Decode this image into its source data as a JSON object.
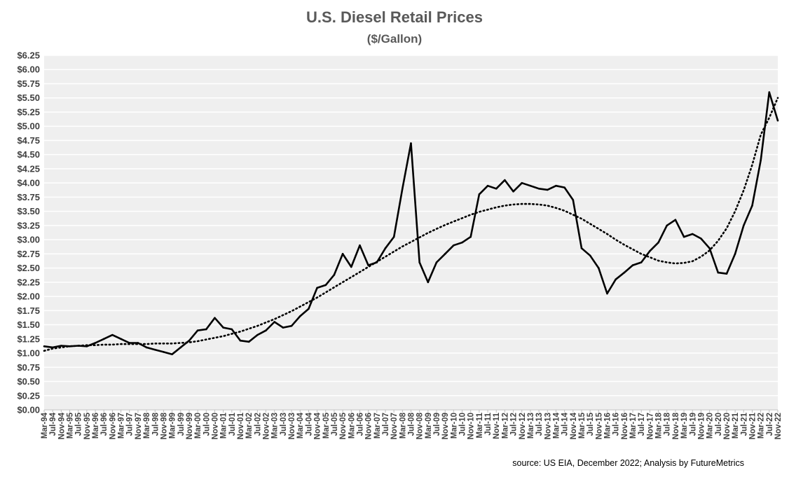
{
  "chart_data": {
    "type": "line",
    "title": "U.S. Diesel Retail Prices",
    "subtitle": "($/Gallon)",
    "ylim": [
      0,
      6.25
    ],
    "y_ticks": [
      "$0.00",
      "$0.25",
      "$0.50",
      "$0.75",
      "$1.00",
      "$1.25",
      "$1.50",
      "$1.75",
      "$2.00",
      "$2.25",
      "$2.50",
      "$2.75",
      "$3.00",
      "$3.25",
      "$3.50",
      "$3.75",
      "$4.00",
      "$4.25",
      "$4.50",
      "$4.75",
      "$5.00",
      "$5.25",
      "$5.50",
      "$5.75",
      "$6.00",
      "$6.25"
    ],
    "x_ticks": [
      "Mar-94",
      "Jul-94",
      "Nov-94",
      "Mar-95",
      "Jul-95",
      "Nov-95",
      "Mar-96",
      "Jul-96",
      "Nov-96",
      "Mar-97",
      "Jul-97",
      "Nov-97",
      "Mar-98",
      "Jul-98",
      "Nov-98",
      "Mar-99",
      "Jul-99",
      "Nov-99",
      "Mar-00",
      "Jul-00",
      "Nov-00",
      "Mar-01",
      "Jul-01",
      "Nov-01",
      "Mar-02",
      "Jul-02",
      "Nov-02",
      "Mar-03",
      "Jul-03",
      "Nov-03",
      "Mar-04",
      "Jul-04",
      "Nov-04",
      "Mar-05",
      "Jul-05",
      "Nov-05",
      "Mar-06",
      "Jul-06",
      "Nov-06",
      "Mar-07",
      "Jul-07",
      "Nov-07",
      "Mar-08",
      "Jul-08",
      "Nov-08",
      "Mar-09",
      "Jul-09",
      "Nov-09",
      "Mar-10",
      "Jul-10",
      "Nov-10",
      "Mar-11",
      "Jul-11",
      "Nov-11",
      "Mar-12",
      "Jul-12",
      "Nov-12",
      "Mar-13",
      "Jul-13",
      "Nov-13",
      "Mar-14",
      "Jul-14",
      "Nov-14",
      "Mar-15",
      "Jul-15",
      "Nov-15",
      "Mar-16",
      "Jul-16",
      "Nov-16",
      "Mar-17",
      "Jul-17",
      "Nov-17",
      "Mar-18",
      "Jul-18",
      "Nov-18",
      "Mar-19",
      "Jul-19",
      "Nov-19",
      "Mar-20",
      "Jul-20",
      "Nov-20",
      "Mar-21",
      "Jul-21",
      "Nov-21",
      "Mar-22",
      "Jul-22",
      "Nov-22"
    ],
    "series": [
      {
        "x": [
          "Mar-94",
          "Jul-94",
          "Nov-94",
          "Mar-95",
          "Jul-95",
          "Nov-95",
          "Mar-96",
          "Jul-96",
          "Nov-96",
          "Mar-97",
          "Jul-97",
          "Nov-97",
          "Mar-98",
          "Jul-98",
          "Nov-98",
          "Mar-99",
          "Jul-99",
          "Nov-99",
          "Mar-00",
          "Jul-00",
          "Nov-00",
          "Mar-01",
          "Jul-01",
          "Nov-01",
          "Mar-02",
          "Jul-02",
          "Nov-02",
          "Mar-03",
          "Jul-03",
          "Nov-03",
          "Mar-04",
          "Jul-04",
          "Nov-04",
          "Mar-05",
          "Jul-05",
          "Nov-05",
          "Mar-06",
          "Jul-06",
          "Nov-06",
          "Mar-07",
          "Jul-07",
          "Nov-07",
          "Mar-08",
          "Jul-08",
          "Nov-08",
          "Mar-09",
          "Jul-09",
          "Nov-09",
          "Mar-10",
          "Jul-10",
          "Nov-10",
          "Mar-11",
          "Jul-11",
          "Nov-11",
          "Mar-12",
          "Jul-12",
          "Nov-12",
          "Mar-13",
          "Jul-13",
          "Nov-13",
          "Mar-14",
          "Jul-14",
          "Nov-14",
          "Mar-15",
          "Jul-15",
          "Nov-15",
          "Mar-16",
          "Jul-16",
          "Nov-16",
          "Mar-17",
          "Jul-17",
          "Nov-17",
          "Mar-18",
          "Jul-18",
          "Nov-18",
          "Mar-19",
          "Jul-19",
          "Nov-19",
          "Mar-20",
          "Jul-20",
          "Nov-20",
          "Mar-21",
          "Jul-21",
          "Nov-21",
          "Mar-22",
          "Jul-22",
          "Nov-22"
        ],
        "values": [
          1.12,
          1.1,
          1.13,
          1.12,
          1.13,
          1.12,
          1.18,
          1.25,
          1.32,
          1.25,
          1.18,
          1.18,
          1.1,
          1.06,
          1.02,
          0.98,
          1.1,
          1.22,
          1.4,
          1.42,
          1.62,
          1.45,
          1.42,
          1.22,
          1.2,
          1.32,
          1.4,
          1.55,
          1.45,
          1.48,
          1.65,
          1.78,
          2.15,
          2.2,
          2.38,
          2.75,
          2.52,
          2.9,
          2.55,
          2.6,
          2.85,
          3.05,
          3.9,
          4.7,
          2.6,
          2.25,
          2.6,
          2.75,
          2.9,
          2.95,
          3.05,
          3.8,
          3.95,
          3.9,
          4.05,
          3.85,
          4.0,
          3.95,
          3.9,
          3.88,
          3.95,
          3.92,
          3.7,
          2.85,
          2.72,
          2.5,
          2.05,
          2.3,
          2.42,
          2.55,
          2.6,
          2.8,
          2.95,
          3.25,
          3.35,
          3.05,
          3.1,
          3.02,
          2.85,
          2.42,
          2.4,
          2.75,
          3.25,
          3.6,
          4.4,
          5.6,
          5.1
        ]
      },
      {
        "name": "trend",
        "x": [
          "Mar-94",
          "Jul-94",
          "Nov-94",
          "Mar-95",
          "Jul-95",
          "Nov-95",
          "Mar-96",
          "Jul-96",
          "Nov-96",
          "Mar-97",
          "Jul-97",
          "Nov-97",
          "Mar-98",
          "Jul-98",
          "Nov-98",
          "Mar-99",
          "Jul-99",
          "Nov-99",
          "Mar-00",
          "Jul-00",
          "Nov-00",
          "Mar-01",
          "Jul-01",
          "Nov-01",
          "Mar-02",
          "Jul-02",
          "Nov-02",
          "Mar-03",
          "Jul-03",
          "Nov-03",
          "Mar-04",
          "Jul-04",
          "Nov-04",
          "Mar-05",
          "Jul-05",
          "Nov-05",
          "Mar-06",
          "Jul-06",
          "Nov-06",
          "Mar-07",
          "Jul-07",
          "Nov-07",
          "Mar-08",
          "Jul-08",
          "Nov-08",
          "Mar-09",
          "Jul-09",
          "Nov-09",
          "Mar-10",
          "Jul-10",
          "Nov-10",
          "Mar-11",
          "Jul-11",
          "Nov-11",
          "Mar-12",
          "Jul-12",
          "Nov-12",
          "Mar-13",
          "Jul-13",
          "Nov-13",
          "Mar-14",
          "Jul-14",
          "Nov-14",
          "Mar-15",
          "Jul-15",
          "Nov-15",
          "Mar-16",
          "Jul-16",
          "Nov-16",
          "Mar-17",
          "Jul-17",
          "Nov-17",
          "Mar-18",
          "Jul-18",
          "Nov-18",
          "Mar-19",
          "Jul-19",
          "Nov-19",
          "Mar-20",
          "Jul-20",
          "Nov-20",
          "Mar-21",
          "Jul-21",
          "Nov-21",
          "Mar-22",
          "Jul-22",
          "Nov-22"
        ],
        "values": [
          1.04,
          1.08,
          1.1,
          1.12,
          1.13,
          1.14,
          1.14,
          1.15,
          1.15,
          1.16,
          1.16,
          1.16,
          1.16,
          1.17,
          1.17,
          1.17,
          1.18,
          1.19,
          1.21,
          1.24,
          1.27,
          1.3,
          1.34,
          1.38,
          1.43,
          1.48,
          1.54,
          1.6,
          1.67,
          1.74,
          1.82,
          1.9,
          1.98,
          2.07,
          2.16,
          2.25,
          2.34,
          2.43,
          2.52,
          2.61,
          2.7,
          2.79,
          2.88,
          2.96,
          3.04,
          3.12,
          3.19,
          3.26,
          3.32,
          3.38,
          3.44,
          3.49,
          3.53,
          3.57,
          3.6,
          3.62,
          3.63,
          3.63,
          3.62,
          3.6,
          3.56,
          3.51,
          3.44,
          3.37,
          3.28,
          3.19,
          3.1,
          3.0,
          2.91,
          2.83,
          2.75,
          2.69,
          2.63,
          2.6,
          2.58,
          2.59,
          2.62,
          2.7,
          2.81,
          2.98,
          3.2,
          3.5,
          3.87,
          4.32,
          4.85,
          5.15,
          5.5
        ]
      }
    ],
    "grid": true,
    "legend": "none",
    "colors": {
      "line": "#000000",
      "trend": "#000000",
      "plot_bg": "#efefef",
      "grid": "#ffffff",
      "title": "#595959",
      "tick_text": "#404040"
    },
    "source_note": "source: US EIA, December 2022;  Analysis by FutureMetrics"
  }
}
